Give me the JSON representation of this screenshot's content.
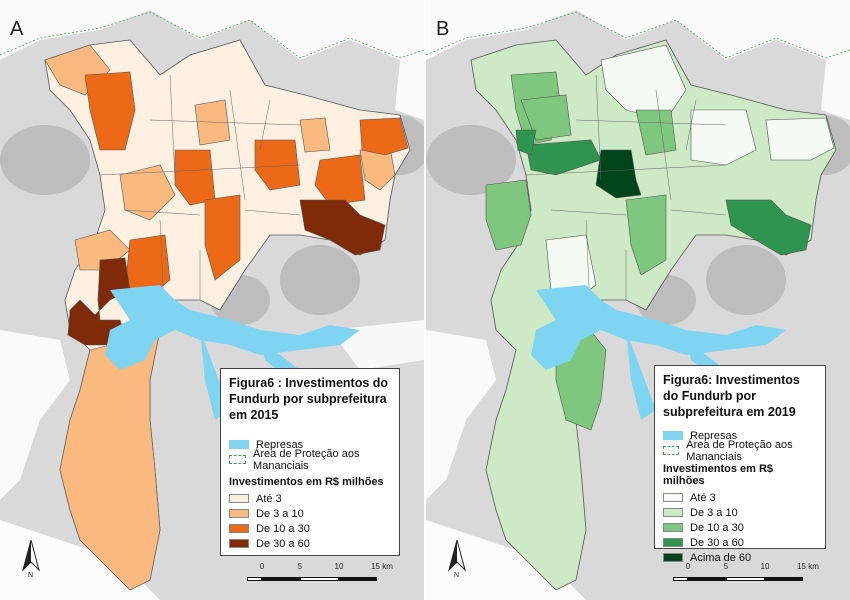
{
  "panel_a": {
    "letter": "A",
    "title": "Figura6 : Investimentos do Fundurb por subprefeitura em 2015",
    "reservoirs_label": "Represas",
    "protection_label": "Área de Proteção aos Mananciais",
    "classes_header": "Investimentos em R$ milhões",
    "classes": [
      {
        "label": "Até 3",
        "color": "#fdf0e1"
      },
      {
        "label": "De 3 a 10",
        "color": "#f9b97f"
      },
      {
        "label": "De 10 a 30",
        "color": "#ec6a17"
      },
      {
        "label": "De 30 a 60",
        "color": "#7f2a08"
      }
    ],
    "north_label": "N",
    "scale": {
      "ticks": [
        "0",
        "5",
        "10",
        "15 km"
      ]
    }
  },
  "panel_b": {
    "letter": "B",
    "title": "Figura6: Investimentos do Fundurb por subprefeitura em 2019",
    "reservoirs_label": "Represas",
    "protection_label": "Área de Proteção aos Mananciais",
    "classes_header": "Investimentos em R$ milhões",
    "classes": [
      {
        "label": "Até 3",
        "color": "#f4fbf2"
      },
      {
        "label": "De 3 a 10",
        "color": "#cde9c6"
      },
      {
        "label": "De 10 a 30",
        "color": "#7fc67f"
      },
      {
        "label": "De 30 a 60",
        "color": "#2f9450"
      },
      {
        "label": "Acima de 60",
        "color": "#00441b"
      }
    ],
    "north_label": "N",
    "scale": {
      "ticks": [
        "0",
        "5",
        "10",
        "15 km"
      ]
    }
  },
  "colors": {
    "background_urban": "#d9d9d9",
    "lake": "#7fd4f2",
    "protection_border": "#3aa64b"
  }
}
